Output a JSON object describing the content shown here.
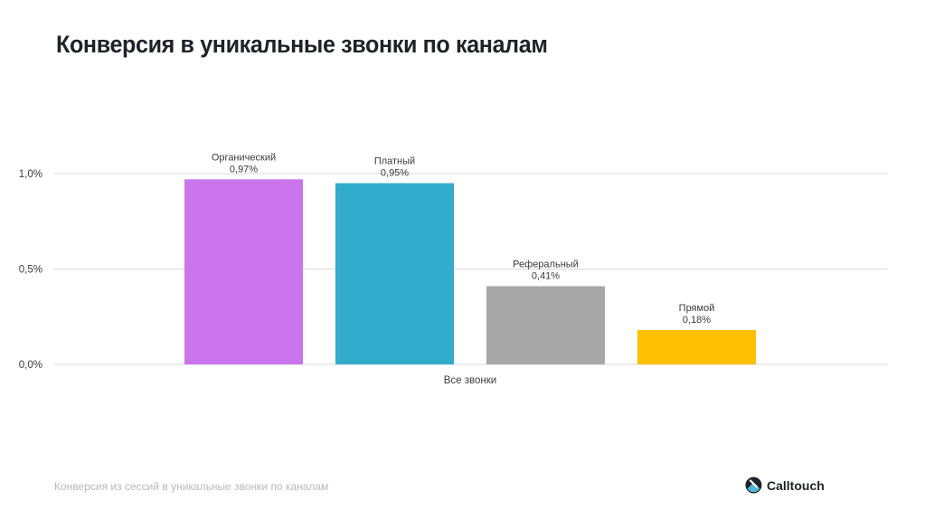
{
  "title": "Конверсия в уникальные звонки по каналам",
  "footer_note": "Конверсия из сессий в уникальные звонки по каналам",
  "brand": "Calltouch",
  "chart_data": {
    "type": "bar",
    "categories": [
      "Все звонки"
    ],
    "series": [
      {
        "name": "Органический",
        "value_label": "0,97%",
        "values": [
          0.97
        ],
        "color": "#cb75ec"
      },
      {
        "name": "Платный",
        "value_label": "0,95%",
        "values": [
          0.95
        ],
        "color": "#32abcc"
      },
      {
        "name": "Реферальный",
        "value_label": "0,41%",
        "values": [
          0.41
        ],
        "color": "#a7a7a7"
      },
      {
        "name": "Прямой",
        "value_label": "0,18%",
        "values": [
          0.18
        ],
        "color": "#fec000"
      }
    ],
    "yticks": [
      {
        "value": 0,
        "label": "0,0%"
      },
      {
        "value": 0.5,
        "label": "0,5%"
      },
      {
        "value": 1.0,
        "label": "1,0%"
      }
    ],
    "ylim": [
      0,
      1.0
    ],
    "grid": true,
    "legend": "none"
  }
}
